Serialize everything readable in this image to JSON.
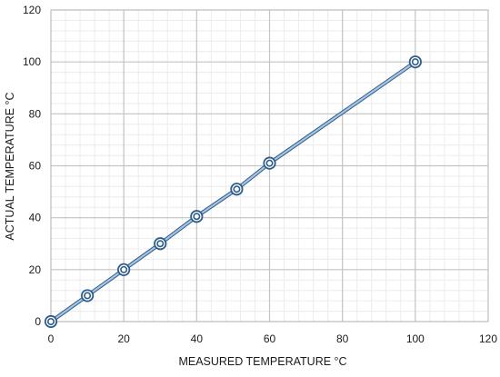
{
  "chart_data": {
    "type": "line",
    "title": "",
    "xlabel": "MEASURED TEMPERATURE  °C",
    "ylabel": "ACTUAL TEMPERATURE °C",
    "xlim": [
      0,
      120
    ],
    "ylim": [
      0,
      120
    ],
    "x_ticks": [
      "0",
      "20",
      "40",
      "60",
      "80",
      "100",
      "120"
    ],
    "y_ticks": [
      "0",
      "20",
      "40",
      "60",
      "80",
      "100",
      "120"
    ],
    "grid": true,
    "minor_grid": true,
    "legend": "none",
    "series": [
      {
        "x": [
          0,
          10,
          20,
          30,
          40,
          51,
          60,
          100
        ],
        "y": [
          0,
          10,
          20,
          30,
          40.5,
          51,
          61,
          100
        ],
        "color": "#2e5d8a",
        "line_color": "#a9c4e2",
        "marker": "double-circle"
      }
    ]
  }
}
